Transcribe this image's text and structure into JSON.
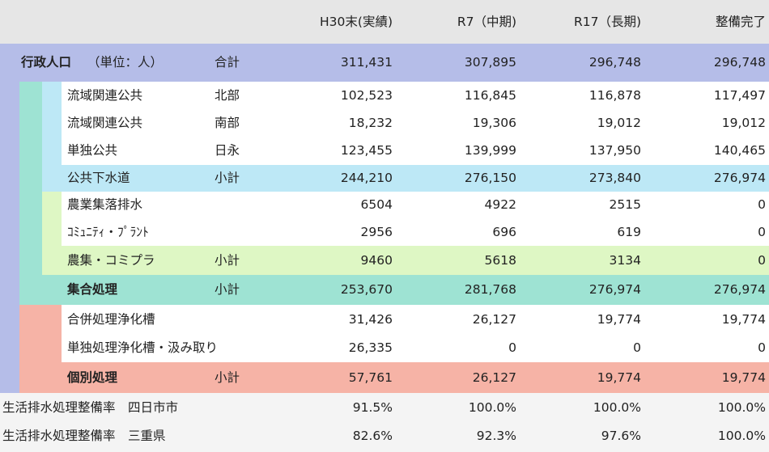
{
  "header": {
    "col1": "H30末(実績)",
    "col2": "R7（中期)",
    "col3": "R17（長期)",
    "col4": "整備完了"
  },
  "colors": {
    "header_bg": "#e6e6e6",
    "gyosei": "#b5bde8",
    "shugo": "#9ee3d3",
    "koukyou": "#bde8f6",
    "nousyu": "#def7c4",
    "kobetsu": "#f6b3a6",
    "footer": "#f4f4f4"
  },
  "rows": [
    {
      "label": "行政人口",
      "unit": "（単位：人）",
      "sub": "合計",
      "values": [
        "311,431",
        "307,895",
        "296,748",
        "296,748"
      ]
    },
    {
      "label": "流域関連公共",
      "sub": "北部",
      "values": [
        "102,523",
        "116,845",
        "116,878",
        "117,497"
      ]
    },
    {
      "label": "流域関連公共",
      "sub": "南部",
      "values": [
        "18,232",
        "19,306",
        "19,012",
        "19,012"
      ]
    },
    {
      "label": "単独公共",
      "sub": "日永",
      "values": [
        "123,455",
        "139,999",
        "137,950",
        "140,465"
      ]
    },
    {
      "label": "公共下水道",
      "sub": "小計",
      "values": [
        "244,210",
        "276,150",
        "273,840",
        "276,974"
      ]
    },
    {
      "label": "農業集落排水",
      "sub": "",
      "values": [
        "6504",
        "4922",
        "2515",
        "0"
      ]
    },
    {
      "label": "ｺﾐｭﾆﾃｨ・ﾌﾟﾗﾝﾄ",
      "sub": "",
      "values": [
        "2956",
        "696",
        "619",
        "0"
      ]
    },
    {
      "label": "農集・コミプラ",
      "sub": "小計",
      "values": [
        "9460",
        "5618",
        "3134",
        "0"
      ]
    },
    {
      "label": "集合処理",
      "sub": "小計",
      "values": [
        "253,670",
        "281,768",
        "276,974",
        "276,974"
      ]
    },
    {
      "label": "合併処理浄化槽",
      "sub": "",
      "values": [
        "31,426",
        "26,127",
        "19,774",
        "19,774"
      ]
    },
    {
      "label": "単独処理浄化槽・汲み取り",
      "sub": "",
      "values": [
        "26,335",
        "0",
        "0",
        "0"
      ]
    },
    {
      "label": "個別処理",
      "sub": "小計",
      "values": [
        "57,761",
        "26,127",
        "19,774",
        "19,774"
      ]
    },
    {
      "label": "生活排水処理整備率　四日市市",
      "sub": "",
      "values": [
        "91.5%",
        "100.0%",
        "100.0%",
        "100.0%"
      ]
    },
    {
      "label": "生活排水処理整備率　三重県",
      "sub": "",
      "values": [
        "82.6%",
        "92.3%",
        "97.6%",
        "100.0%"
      ]
    }
  ]
}
